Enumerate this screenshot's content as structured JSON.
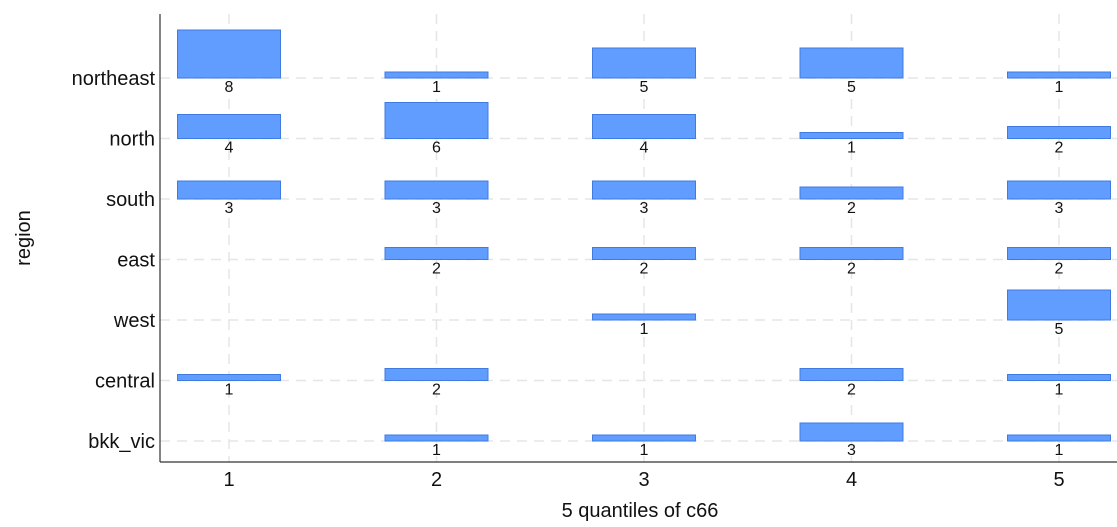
{
  "chart_data": {
    "type": "bar",
    "title": "",
    "xlabel": "5 quantiles of c66",
    "ylabel": "region",
    "x_categories": [
      "1",
      "2",
      "3",
      "4",
      "5"
    ],
    "y_categories": [
      "northeast",
      "north",
      "south",
      "east",
      "west",
      "central",
      "bkk_vic"
    ],
    "bar_color": "#619cff",
    "grid": true,
    "legend": "none",
    "cells": [
      {
        "region": "northeast",
        "quantile": 1,
        "count": 8
      },
      {
        "region": "northeast",
        "quantile": 2,
        "count": 1
      },
      {
        "region": "northeast",
        "quantile": 3,
        "count": 5
      },
      {
        "region": "northeast",
        "quantile": 4,
        "count": 5
      },
      {
        "region": "northeast",
        "quantile": 5,
        "count": 1
      },
      {
        "region": "north",
        "quantile": 1,
        "count": 4
      },
      {
        "region": "north",
        "quantile": 2,
        "count": 6
      },
      {
        "region": "north",
        "quantile": 3,
        "count": 4
      },
      {
        "region": "north",
        "quantile": 4,
        "count": 1
      },
      {
        "region": "north",
        "quantile": 5,
        "count": 2
      },
      {
        "region": "south",
        "quantile": 1,
        "count": 3
      },
      {
        "region": "south",
        "quantile": 2,
        "count": 3
      },
      {
        "region": "south",
        "quantile": 3,
        "count": 3
      },
      {
        "region": "south",
        "quantile": 4,
        "count": 2
      },
      {
        "region": "south",
        "quantile": 5,
        "count": 3
      },
      {
        "region": "east",
        "quantile": 2,
        "count": 2
      },
      {
        "region": "east",
        "quantile": 3,
        "count": 2
      },
      {
        "region": "east",
        "quantile": 4,
        "count": 2
      },
      {
        "region": "east",
        "quantile": 5,
        "count": 2
      },
      {
        "region": "west",
        "quantile": 3,
        "count": 1
      },
      {
        "region": "west",
        "quantile": 5,
        "count": 5
      },
      {
        "region": "central",
        "quantile": 1,
        "count": 1
      },
      {
        "region": "central",
        "quantile": 2,
        "count": 2
      },
      {
        "region": "central",
        "quantile": 4,
        "count": 2
      },
      {
        "region": "central",
        "quantile": 5,
        "count": 1
      },
      {
        "region": "bkk_vic",
        "quantile": 2,
        "count": 1
      },
      {
        "region": "bkk_vic",
        "quantile": 3,
        "count": 1
      },
      {
        "region": "bkk_vic",
        "quantile": 4,
        "count": 3
      },
      {
        "region": "bkk_vic",
        "quantile": 5,
        "count": 1
      }
    ]
  }
}
